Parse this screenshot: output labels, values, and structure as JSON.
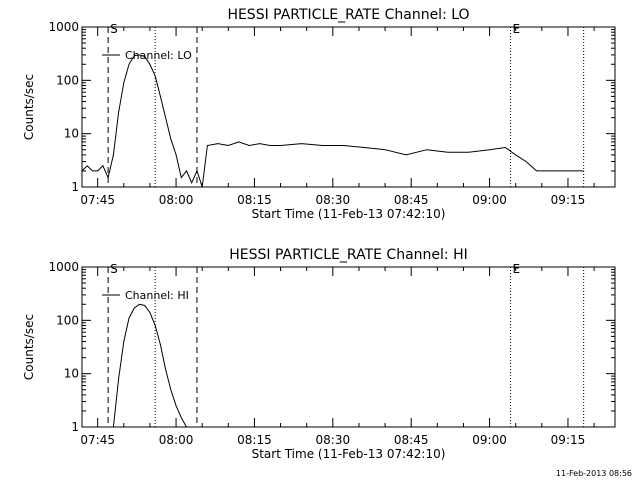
{
  "chart_data": [
    {
      "type": "line",
      "title": "HESSI PARTICLE_RATE Channel: LO",
      "xlabel": "Start Time (11-Feb-13 07:42:10)",
      "ylabel": "Counts/sec",
      "yscale": "log",
      "xlim": [
        "07:42",
        "09:24"
      ],
      "ylim": [
        1,
        1000
      ],
      "x_ticks": [
        "07:45",
        "08:00",
        "08:15",
        "08:30",
        "08:45",
        "09:00",
        "09:15"
      ],
      "y_ticks": [
        "1",
        "10",
        "100",
        "1000"
      ],
      "legend": "top-left",
      "markers": [
        {
          "label": "S",
          "time": "07:47",
          "style": "dashed"
        },
        {
          "label": "",
          "time": "08:04",
          "style": "dashed"
        },
        {
          "label": "",
          "time": "07:56",
          "style": "dotted"
        },
        {
          "label": "E",
          "time": "09:04",
          "style": "dotted"
        },
        {
          "label": "",
          "time": "09:18",
          "style": "dotted"
        }
      ],
      "series": [
        {
          "name": "Channel: LO",
          "x": [
            "07:42",
            "07:43",
            "07:44",
            "07:45",
            "07:46",
            "07:47",
            "07:48",
            "07:49",
            "07:50",
            "07:51",
            "07:52",
            "07:53",
            "07:54",
            "07:55",
            "07:56",
            "07:57",
            "07:58",
            "07:59",
            "08:00",
            "08:01",
            "08:02",
            "08:03",
            "08:04",
            "08:05",
            "08:06",
            "08:08",
            "08:10",
            "08:12",
            "08:14",
            "08:16",
            "08:18",
            "08:20",
            "08:24",
            "08:28",
            "08:32",
            "08:36",
            "08:40",
            "08:44",
            "08:48",
            "08:52",
            "08:56",
            "09:00",
            "09:03",
            "09:05",
            "09:07",
            "09:09",
            "09:12",
            "09:15",
            "09:18"
          ],
          "y": [
            2,
            2.5,
            2,
            2,
            2.5,
            1.5,
            4,
            25,
            90,
            200,
            290,
            300,
            280,
            200,
            120,
            50,
            20,
            8,
            4,
            1.5,
            2,
            1.2,
            2,
            1,
            6,
            6.5,
            6,
            7,
            6,
            6.5,
            6,
            6,
            6.5,
            6,
            6,
            5.5,
            5,
            4,
            5,
            4.5,
            4.5,
            5,
            5.5,
            4,
            3,
            2,
            2,
            2,
            2
          ]
        }
      ]
    },
    {
      "type": "line",
      "title": "HESSI PARTICLE_RATE Channel: HI",
      "xlabel": "Start Time (11-Feb-13 07:42:10)",
      "ylabel": "Counts/sec",
      "yscale": "log",
      "xlim": [
        "07:42",
        "09:24"
      ],
      "ylim": [
        1,
        1000
      ],
      "x_ticks": [
        "07:45",
        "08:00",
        "08:15",
        "08:30",
        "08:45",
        "09:00",
        "09:15"
      ],
      "y_ticks": [
        "1",
        "10",
        "100",
        "1000"
      ],
      "legend": "top-left",
      "markers": [
        {
          "label": "S",
          "time": "07:47",
          "style": "dashed"
        },
        {
          "label": "",
          "time": "08:04",
          "style": "dashed"
        },
        {
          "label": "",
          "time": "07:56",
          "style": "dotted"
        },
        {
          "label": "E",
          "time": "09:04",
          "style": "dotted"
        },
        {
          "label": "",
          "time": "09:18",
          "style": "dotted"
        }
      ],
      "series": [
        {
          "name": "Channel: HI",
          "x": [
            "07:48",
            "07:49",
            "07:50",
            "07:51",
            "07:52",
            "07:53",
            "07:54",
            "07:55",
            "07:56",
            "07:57",
            "07:58",
            "07:59",
            "08:00",
            "08:01",
            "08:02"
          ],
          "y": [
            1,
            8,
            40,
            110,
            170,
            200,
            190,
            140,
            80,
            35,
            12,
            5,
            2.5,
            1.5,
            1
          ]
        }
      ]
    }
  ],
  "footer": {
    "stamp": "11-Feb-2013 08:56"
  }
}
